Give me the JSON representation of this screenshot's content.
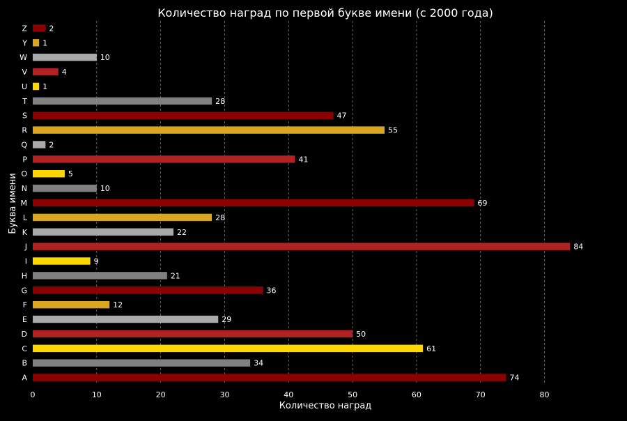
{
  "chart_data": {
    "type": "bar",
    "orientation": "horizontal",
    "title": "Количество наград по первой букве имени (с 2000 года)",
    "xlabel": "Количество наград",
    "ylabel": "Буква имени",
    "xlim": [
      0,
      88
    ],
    "xticks": [
      0,
      10,
      20,
      30,
      40,
      50,
      60,
      70,
      80
    ],
    "grid": "x-dashed",
    "categories": [
      "A",
      "B",
      "C",
      "D",
      "E",
      "F",
      "G",
      "H",
      "I",
      "J",
      "K",
      "L",
      "M",
      "N",
      "O",
      "P",
      "Q",
      "R",
      "S",
      "T",
      "U",
      "V",
      "W",
      "Y",
      "Z"
    ],
    "values": [
      74,
      34,
      61,
      50,
      29,
      12,
      36,
      21,
      9,
      84,
      22,
      28,
      69,
      10,
      5,
      41,
      2,
      55,
      47,
      28,
      1,
      4,
      10,
      1,
      2
    ],
    "palette": [
      "#8b0000",
      "#808080",
      "#ffd700",
      "#b22222",
      "#a9a9a9",
      "#daa520"
    ],
    "background": "#000000",
    "text_color": "#ffffff",
    "grid_color": "#808080"
  }
}
